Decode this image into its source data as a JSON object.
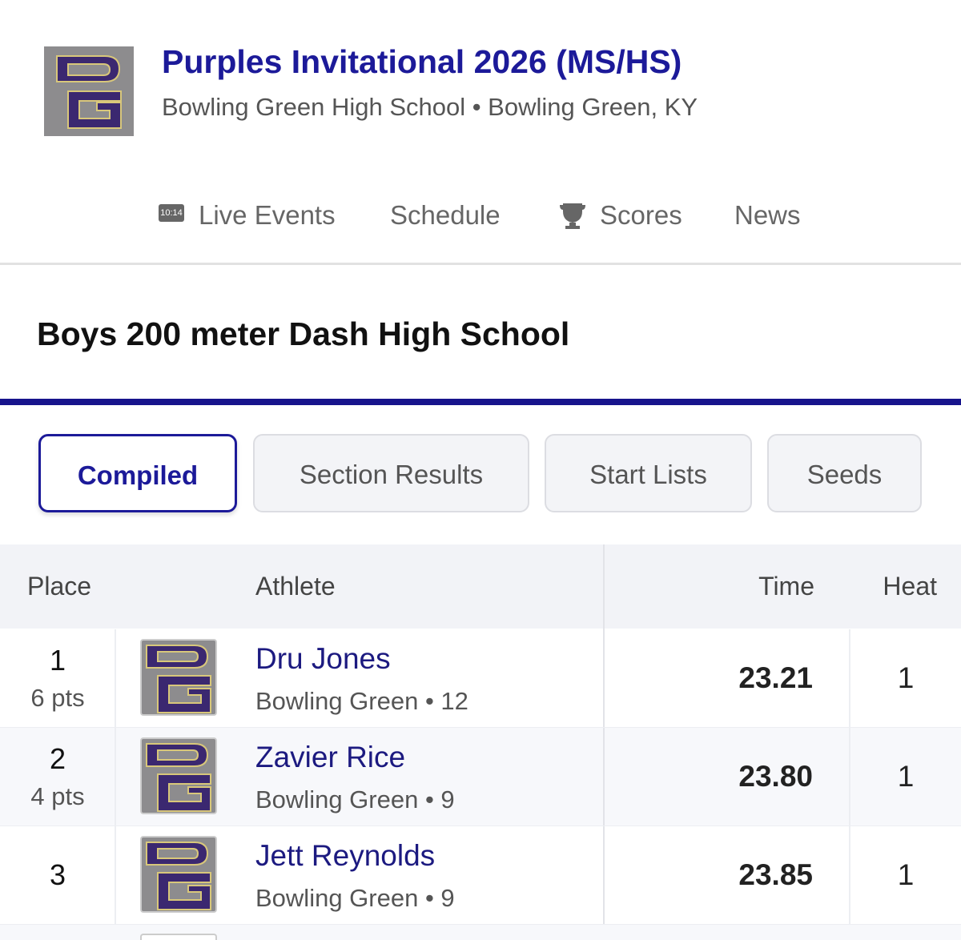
{
  "header": {
    "title": "Purples Invitational 2026 (MS/HS)",
    "location": "Bowling Green High School • Bowling Green, KY"
  },
  "nav": {
    "live_icon_text": "10:14",
    "items": [
      "Live Events",
      "Schedule",
      "Scores",
      "News"
    ]
  },
  "event": {
    "title": "Boys 200 meter Dash High School"
  },
  "tabs": {
    "items": [
      "Compiled",
      "Section Results",
      "Start Lists",
      "Seeds"
    ],
    "active": 0
  },
  "table": {
    "headers": [
      "Place",
      "Athlete",
      "Time",
      "Heat"
    ],
    "rows": [
      {
        "place": "1",
        "points": "6 pts",
        "name": "Dru Jones",
        "info": "Bowling Green • 12",
        "time": "23.21",
        "heat": "1"
      },
      {
        "place": "2",
        "points": "4 pts",
        "name": "Zavier Rice",
        "info": "Bowling Green • 9",
        "time": "23.80",
        "heat": "1"
      },
      {
        "place": "3",
        "name": "Jett Reynolds",
        "info": "Bowling Green • 9",
        "time": "23.85",
        "heat": "1"
      }
    ]
  }
}
